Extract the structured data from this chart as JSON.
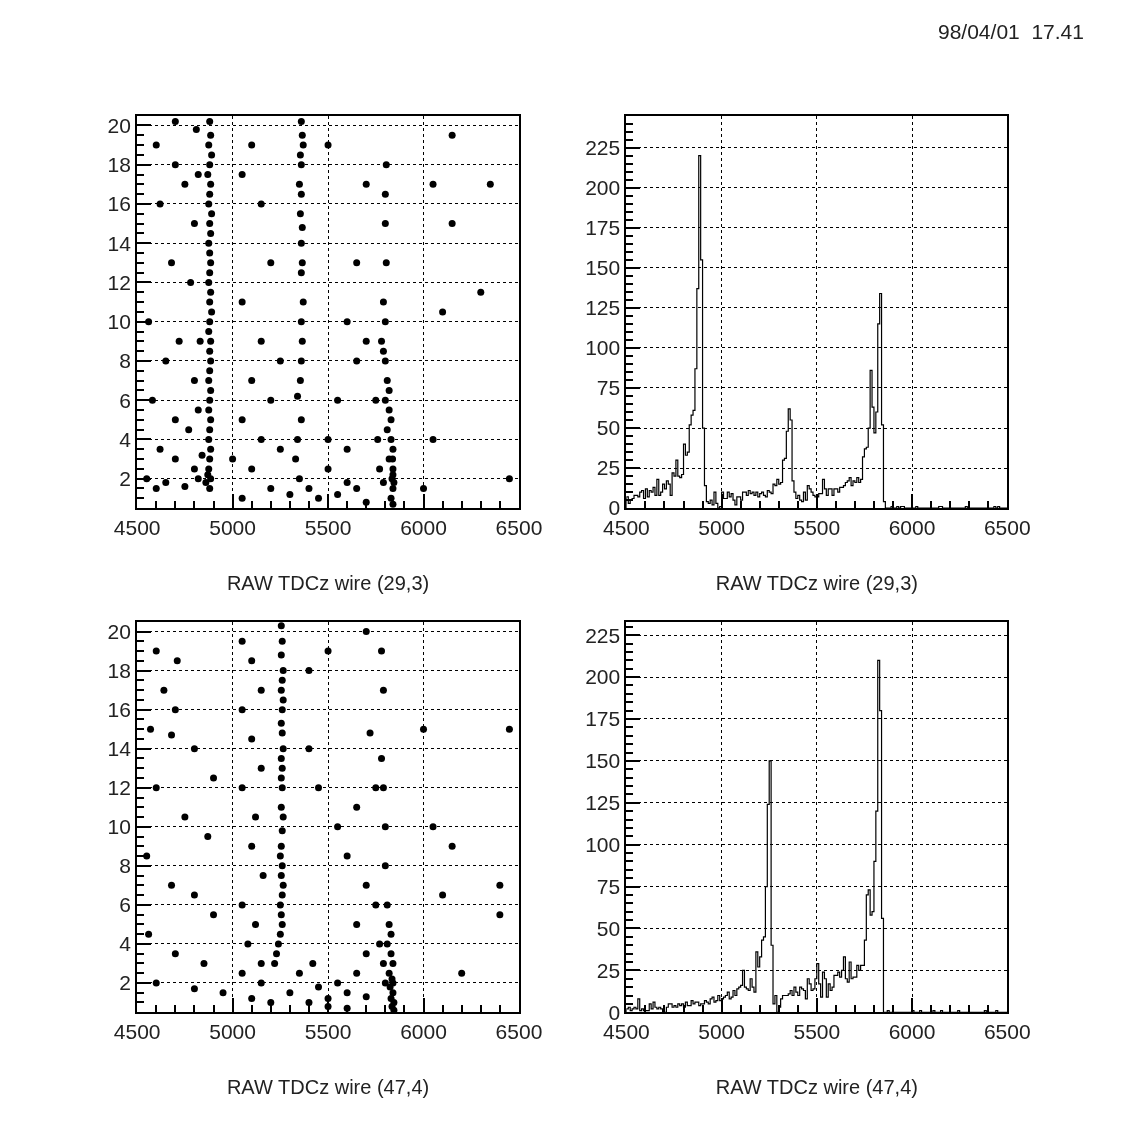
{
  "chart_data": [
    {
      "type": "scatter",
      "xlabel": "RAW TDCz wire (29,3)",
      "annotations": [
        "98/04/01  17.41"
      ],
      "xlim": [
        4500,
        6500
      ],
      "xticks": [
        4500,
        5000,
        5500,
        6000,
        6500
      ],
      "ylim": [
        0.5,
        20.5
      ],
      "yticks": [
        2,
        4,
        6,
        8,
        10,
        12,
        14,
        16,
        18,
        20
      ],
      "grid": true,
      "marker": "circle",
      "x": [
        4880,
        4885,
        4875,
        4890,
        4880,
        4870,
        4885,
        4880,
        4875,
        4890,
        4880,
        4885,
        4875,
        4880,
        4885,
        4880,
        4875,
        4885,
        4880,
        4890,
        4880,
        4875,
        4885,
        4880,
        4885,
        4880,
        4875,
        4885,
        4880,
        4875,
        4885,
        4880,
        4875,
        4885,
        4880,
        4875,
        4885,
        4880,
        4870,
        4860,
        4600,
        4700,
        4620,
        4750,
        4800,
        4680,
        4780,
        4560,
        4720,
        4650,
        4800,
        4580,
        4700,
        4770,
        4620,
        4700,
        4800,
        4550,
        4650,
        4750,
        4600,
        4820,
        4840,
        4820,
        4830,
        4820,
        4810,
        4700,
        5360,
        5365,
        5370,
        5355,
        5360,
        5350,
        5360,
        5355,
        5365,
        5360,
        5365,
        5360,
        5370,
        5360,
        5365,
        5360,
        5355,
        5340,
        5360,
        5340,
        5330,
        5350,
        5100,
        5050,
        5150,
        5200,
        5050,
        5150,
        5250,
        5100,
        5200,
        5050,
        5150,
        5250,
        5000,
        5100,
        5200,
        5300,
        5050,
        5400,
        5450,
        5500,
        5550,
        5600,
        5650,
        5700,
        5500,
        5600,
        5550,
        5650,
        5600,
        5700,
        5650,
        5700,
        5500,
        5805,
        5800,
        5800,
        5805,
        5790,
        5800,
        5780,
        5790,
        5800,
        5810,
        5820,
        5800,
        5820,
        5830,
        5810,
        5830,
        5840,
        5820,
        5840,
        5835,
        5840,
        5830,
        5840,
        5760,
        5770,
        5750,
        5790,
        5845,
        5840,
        5838,
        6150,
        6050,
        6350,
        6150,
        6300,
        6100,
        6050,
        6000,
        6450
      ],
      "color": "#000000",
      "values": [
        20.2,
        19.5,
        19,
        18.5,
        18,
        17.5,
        17,
        16.5,
        16,
        15.5,
        15,
        14.5,
        14,
        13.5,
        13,
        12.5,
        12,
        11.5,
        11,
        10.5,
        10,
        9.5,
        9,
        8.5,
        8,
        7.5,
        7,
        6.5,
        6,
        5.5,
        5,
        4.5,
        4,
        3.5,
        3,
        2.5,
        2,
        1.5,
        2.2,
        1.8,
        19,
        18,
        16,
        17,
        15,
        13,
        12,
        10,
        9,
        8,
        7,
        6,
        5,
        4.5,
        3.5,
        3,
        2.5,
        2,
        1.8,
        1.6,
        1.5,
        2,
        3.2,
        5.5,
        9,
        17.5,
        19.8,
        20.2,
        20.2,
        19.5,
        19,
        18.5,
        18,
        17,
        16.5,
        15.5,
        14.8,
        14,
        13,
        12.5,
        11,
        10,
        9,
        8,
        7,
        6.2,
        5,
        4,
        3,
        2,
        19,
        17.5,
        16,
        13,
        11,
        9,
        8,
        7,
        6,
        5,
        4,
        3.5,
        3,
        2.5,
        1.5,
        1.2,
        1,
        1.5,
        1,
        2.5,
        1.2,
        1.8,
        1.5,
        0.8,
        4,
        3.5,
        6,
        8,
        10,
        9,
        13,
        17,
        19,
        18,
        16.5,
        15,
        13,
        11,
        10,
        9,
        8.5,
        8,
        7,
        6.5,
        6,
        5.5,
        5,
        4.5,
        4,
        3.5,
        3,
        2.5,
        2,
        1.5,
        1,
        0.7,
        4,
        2.5,
        6,
        1.8,
        1.8,
        2.2,
        3,
        19.5,
        17,
        17,
        15,
        11.5,
        10.5,
        4,
        1.5,
        2
      ]
    },
    {
      "type": "histogram",
      "xlabel": "RAW TDCz wire (29,3)",
      "xlim": [
        4500,
        6500
      ],
      "xticks": [
        4500,
        5000,
        5500,
        6000,
        6500
      ],
      "ylim": [
        0,
        245
      ],
      "yticks": [
        0,
        25,
        50,
        75,
        100,
        125,
        150,
        175,
        200,
        225
      ],
      "grid": true,
      "color": "#000000",
      "bins": [
        4500,
        4510,
        4520,
        4530,
        4540,
        4550,
        4560,
        4570,
        4580,
        4590,
        4600,
        4610,
        4620,
        4630,
        4640,
        4650,
        4660,
        4670,
        4680,
        4690,
        4700,
        4710,
        4720,
        4730,
        4740,
        4750,
        4760,
        4770,
        4780,
        4790,
        4800,
        4810,
        4820,
        4830,
        4840,
        4850,
        4860,
        4870,
        4880,
        4890,
        4900,
        4910,
        4920,
        4930,
        4940,
        4950,
        4960,
        4970,
        4980,
        4990,
        5000,
        5010,
        5020,
        5030,
        5040,
        5050,
        5060,
        5070,
        5080,
        5090,
        5100,
        5110,
        5120,
        5130,
        5140,
        5150,
        5160,
        5170,
        5180,
        5190,
        5200,
        5210,
        5220,
        5230,
        5240,
        5250,
        5260,
        5270,
        5280,
        5290,
        5300,
        5310,
        5320,
        5330,
        5340,
        5350,
        5360,
        5370,
        5380,
        5390,
        5400,
        5410,
        5420,
        5430,
        5440,
        5450,
        5460,
        5470,
        5480,
        5490,
        5500,
        5510,
        5520,
        5530,
        5540,
        5550,
        5560,
        5570,
        5580,
        5590,
        5600,
        5610,
        5620,
        5630,
        5640,
        5650,
        5660,
        5670,
        5680,
        5690,
        5700,
        5710,
        5720,
        5730,
        5740,
        5750,
        5760,
        5770,
        5780,
        5790,
        5800,
        5810,
        5820,
        5830,
        5840,
        5850,
        5860,
        5870,
        5880,
        5890,
        5900,
        5910,
        5920,
        5930,
        5940,
        5950,
        5960,
        5970,
        5980,
        5990,
        6000,
        6010,
        6020,
        6030,
        6040,
        6050,
        6060,
        6070,
        6080,
        6090,
        6100,
        6110,
        6120,
        6130,
        6140,
        6150,
        6160,
        6170,
        6180,
        6190,
        6200,
        6210,
        6220,
        6230,
        6240,
        6250,
        6260,
        6270,
        6280,
        6290,
        6300,
        6310,
        6320,
        6330,
        6340,
        6350,
        6360,
        6370,
        6380,
        6390,
        6400,
        6410,
        6420,
        6430,
        6440,
        6450,
        6460,
        6470,
        6480,
        6490,
        6500
      ],
      "values": [
        7,
        3,
        5,
        6,
        8,
        8,
        7,
        10,
        11,
        6,
        12,
        7,
        11,
        10,
        13,
        8,
        18,
        8,
        10,
        15,
        12,
        17,
        15,
        8,
        22,
        20,
        30,
        20,
        19,
        21,
        40,
        33,
        35,
        52,
        58,
        61,
        87,
        137,
        220,
        155,
        50,
        14,
        4,
        3,
        5,
        2,
        10,
        3,
        0,
        1,
        10,
        6,
        6,
        10,
        7,
        9,
        5,
        2,
        7,
        7,
        5,
        10,
        10,
        8,
        11,
        9,
        10,
        8,
        10,
        7,
        9,
        10,
        8,
        7,
        11,
        10,
        9,
        15,
        14,
        18,
        15,
        16,
        30,
        31,
        48,
        62,
        55,
        17,
        10,
        6,
        8,
        5,
        4,
        10,
        5,
        14,
        12,
        10,
        8,
        7,
        7,
        9,
        9,
        18,
        12,
        8,
        12,
        12,
        8,
        12,
        12,
        10,
        13,
        13,
        14,
        16,
        17,
        19,
        14,
        17,
        16,
        19,
        16,
        18,
        32,
        37,
        38,
        50,
        86,
        63,
        47,
        60,
        115,
        134,
        52,
        4,
        0,
        0,
        0,
        1,
        0,
        0,
        1,
        0,
        1,
        1,
        0,
        0,
        0,
        0,
        0,
        0,
        1,
        0,
        0,
        0,
        0,
        0,
        0,
        0,
        0,
        0,
        0,
        0,
        1,
        1,
        0,
        0,
        0,
        0,
        0,
        0,
        0,
        0,
        0,
        0,
        0,
        0,
        1,
        0,
        0,
        0,
        0,
        0,
        0,
        0,
        0,
        0,
        0,
        0,
        0,
        0,
        0,
        1,
        0,
        1,
        0,
        0,
        0,
        0
      ]
    },
    {
      "type": "scatter",
      "xlabel": "RAW TDCz wire (47,4)",
      "xlim": [
        4500,
        6500
      ],
      "xticks": [
        4500,
        5000,
        5500,
        6000,
        6500
      ],
      "ylim": [
        0.5,
        20.5
      ],
      "yticks": [
        2,
        4,
        6,
        8,
        10,
        12,
        14,
        16,
        18,
        20
      ],
      "grid": true,
      "marker": "circle",
      "x": [
        5255,
        5260,
        5255,
        5265,
        5260,
        5255,
        5265,
        5260,
        5255,
        5260,
        5265,
        5255,
        5260,
        5255,
        5260,
        5255,
        5265,
        5260,
        5255,
        5250,
        5260,
        5255,
        5265,
        5260,
        5250,
        5255,
        5260,
        5250,
        5240,
        5230,
        5220,
        4600,
        4710,
        4640,
        4700,
        4570,
        4680,
        4800,
        4900,
        4600,
        4750,
        4870,
        4550,
        4680,
        4800,
        4900,
        4560,
        4700,
        4850,
        4600,
        4800,
        4950,
        5050,
        5100,
        5150,
        5050,
        5100,
        5150,
        5050,
        5120,
        5100,
        5160,
        5050,
        5120,
        5080,
        5150,
        5050,
        5150,
        5100,
        5200,
        5300,
        5350,
        5400,
        5420,
        5450,
        5500,
        5500,
        5550,
        5600,
        5600,
        5650,
        5700,
        5700,
        5650,
        5750,
        5600,
        5700,
        5550,
        5650,
        5400,
        5450,
        5400,
        5500,
        5700,
        5720,
        5750,
        5780,
        5790,
        5780,
        5790,
        5800,
        5800,
        5810,
        5820,
        5830,
        5810,
        5830,
        5840,
        5820,
        5835,
        5840,
        5825,
        5840,
        5830,
        5845,
        5835,
        5845,
        5800,
        5790,
        5770,
        6150,
        6100,
        6400,
        6400,
        6200,
        6450,
        6050,
        6000
      ],
      "color": "#000000",
      "values": [
        20.3,
        19.5,
        18.8,
        18,
        17.5,
        17,
        16.5,
        16,
        15.3,
        14.8,
        14,
        13.5,
        13,
        12.5,
        12,
        11,
        10.5,
        9.8,
        9,
        8.5,
        8,
        7.5,
        7,
        6.5,
        6,
        5.5,
        5,
        4.5,
        4,
        3.5,
        3,
        19,
        18.5,
        17,
        16,
        15,
        14.7,
        14,
        12.5,
        12,
        10.5,
        9.5,
        8.5,
        7,
        6.5,
        5.5,
        4.5,
        3.5,
        3,
        2,
        1.7,
        1.5,
        19.5,
        18.5,
        17,
        16,
        14.5,
        13,
        12,
        10.5,
        9,
        7.5,
        6,
        5,
        4,
        3,
        2.5,
        2,
        1.2,
        1,
        1.5,
        2.5,
        1,
        3,
        1.8,
        1.2,
        0.8,
        2,
        1.5,
        0.7,
        2.5,
        1.3,
        3.5,
        5,
        6,
        8.5,
        7,
        10,
        11,
        14,
        12,
        18,
        19,
        20,
        14.8,
        12,
        19,
        17,
        13.5,
        12,
        10,
        8,
        6,
        5,
        4.5,
        4,
        3.5,
        3,
        2.5,
        2.2,
        2,
        1.8,
        1.5,
        1.2,
        1,
        0.8,
        0.6,
        2,
        3,
        4,
        9,
        6.5,
        7,
        5.5,
        2.5,
        15,
        10,
        15
      ]
    },
    {
      "type": "histogram",
      "xlabel": "RAW TDCz wire (47,4)",
      "xlim": [
        4500,
        6500
      ],
      "xticks": [
        4500,
        5000,
        5500,
        6000,
        6500
      ],
      "ylim": [
        0,
        233
      ],
      "yticks": [
        0,
        25,
        50,
        75,
        100,
        125,
        150,
        175,
        200,
        225
      ],
      "grid": true,
      "color": "#000000",
      "bins": [
        4500,
        4510,
        4520,
        4530,
        4540,
        4550,
        4560,
        4570,
        4580,
        4590,
        4600,
        4610,
        4620,
        4630,
        4640,
        4650,
        4660,
        4670,
        4680,
        4690,
        4700,
        4710,
        4720,
        4730,
        4740,
        4750,
        4760,
        4770,
        4780,
        4790,
        4800,
        4810,
        4820,
        4830,
        4840,
        4850,
        4860,
        4870,
        4880,
        4890,
        4900,
        4910,
        4920,
        4930,
        4940,
        4950,
        4960,
        4970,
        4980,
        4990,
        5000,
        5010,
        5020,
        5030,
        5040,
        5050,
        5060,
        5070,
        5080,
        5090,
        5100,
        5110,
        5120,
        5130,
        5140,
        5150,
        5160,
        5170,
        5180,
        5190,
        5200,
        5210,
        5220,
        5230,
        5240,
        5250,
        5260,
        5270,
        5280,
        5290,
        5300,
        5310,
        5320,
        5330,
        5340,
        5350,
        5360,
        5370,
        5380,
        5390,
        5400,
        5410,
        5420,
        5430,
        5440,
        5450,
        5460,
        5470,
        5480,
        5490,
        5500,
        5510,
        5520,
        5530,
        5540,
        5550,
        5560,
        5570,
        5580,
        5590,
        5600,
        5610,
        5620,
        5630,
        5640,
        5650,
        5660,
        5670,
        5680,
        5690,
        5700,
        5710,
        5720,
        5730,
        5740,
        5750,
        5760,
        5770,
        5780,
        5790,
        5800,
        5810,
        5820,
        5830,
        5840,
        5850,
        5860,
        5870,
        5880,
        5890,
        5900,
        5910,
        5920,
        5930,
        5940,
        5950,
        5960,
        5970,
        5980,
        5990,
        6000,
        6010,
        6020,
        6030,
        6040,
        6050,
        6060,
        6070,
        6080,
        6090,
        6100,
        6110,
        6120,
        6130,
        6140,
        6150,
        6160,
        6170,
        6180,
        6190,
        6200,
        6210,
        6220,
        6230,
        6240,
        6250,
        6260,
        6270,
        6280,
        6290,
        6300,
        6310,
        6320,
        6330,
        6340,
        6350,
        6360,
        6370,
        6380,
        6390,
        6400,
        6410,
        6420,
        6430,
        6440,
        6450,
        6460,
        6470,
        6480,
        6490,
        6500
      ],
      "values": [
        2,
        3,
        1,
        2,
        3,
        2,
        8,
        1,
        2,
        1,
        1,
        1,
        5,
        2,
        6,
        3,
        2,
        3,
        2,
        0,
        0,
        3,
        5,
        5,
        3,
        4,
        3,
        5,
        4,
        5,
        3,
        6,
        4,
        4,
        7,
        5,
        6,
        6,
        4,
        5,
        5,
        7,
        6,
        5,
        8,
        9,
        6,
        7,
        10,
        7,
        8,
        9,
        10,
        12,
        8,
        9,
        13,
        10,
        14,
        15,
        16,
        25,
        15,
        14,
        13,
        20,
        15,
        12,
        36,
        27,
        33,
        43,
        45,
        75,
        124,
        150,
        40,
        5,
        10,
        0,
        3,
        8,
        10,
        10,
        10,
        11,
        13,
        10,
        15,
        12,
        10,
        15,
        14,
        13,
        8,
        20,
        17,
        13,
        14,
        20,
        29,
        17,
        9,
        24,
        20,
        9,
        17,
        13,
        15,
        22,
        22,
        24,
        21,
        25,
        33,
        20,
        18,
        30,
        20,
        21,
        21,
        28,
        25,
        28,
        28,
        43,
        70,
        73,
        58,
        60,
        90,
        120,
        210,
        180,
        56,
        0,
        0,
        1,
        0,
        0,
        0,
        0,
        0,
        0,
        0,
        0,
        0,
        0,
        0,
        0,
        1,
        0,
        0,
        0,
        1,
        0,
        0,
        0,
        0,
        0,
        0,
        1,
        0,
        0,
        0,
        1,
        0,
        0,
        0,
        0,
        0,
        0,
        0,
        0,
        1,
        0,
        0,
        0,
        0,
        0,
        0,
        0,
        0,
        0,
        0,
        0,
        0,
        0,
        1,
        0,
        0,
        0,
        0,
        0,
        1,
        0,
        0,
        0,
        0,
        0
      ]
    }
  ]
}
